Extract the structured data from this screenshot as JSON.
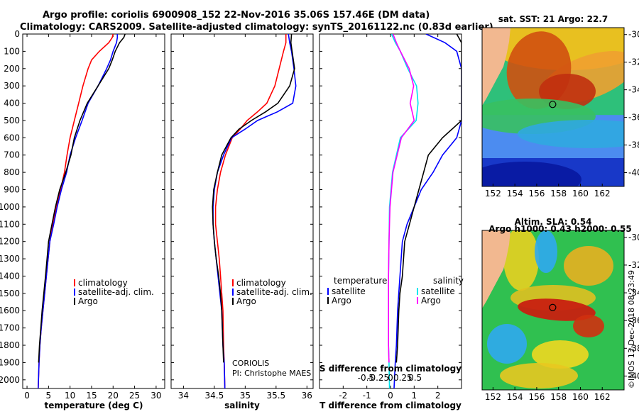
{
  "header": {
    "line1": "Argo profile: coriolis 6900908_152 22-Nov-2016 35.06S 157.46E (DM data)",
    "line2": "Climatology: CARS2009. Satellite-adjusted climatology: synTS_20161122.nc (0.83d earlier)"
  },
  "footer": {
    "institution": "CORIOLIS",
    "pi": "PI: Christophe MAES",
    "credit": "©IMOS 13-Dec-2018 08:23:49"
  },
  "colors": {
    "climatology": "#ff0000",
    "satellite": "#0000ff",
    "argo": "#000000",
    "sat_salinity": "#00e5ee",
    "argo_salinity": "#ff00ff"
  },
  "chart_data": [
    {
      "type": "line",
      "id": "temperature",
      "xlabel": "temperature (deg C)",
      "xlim": [
        -1,
        32
      ],
      "xticks": [
        0,
        5,
        10,
        15,
        20,
        25,
        30
      ],
      "ylim": [
        2050,
        0
      ],
      "yticks": [
        0,
        100,
        200,
        300,
        400,
        500,
        600,
        700,
        800,
        900,
        1000,
        1100,
        1200,
        1300,
        1400,
        1500,
        1600,
        1700,
        1800,
        1900,
        2000
      ],
      "legend": [
        "climatology",
        "satellite-adj. clim.",
        "Argo"
      ],
      "series": [
        {
          "name": "climatology",
          "color": "#ff0000",
          "x": [
            20.0,
            19.8,
            19.0,
            16.8,
            15.0,
            14.2,
            13.0,
            12.0,
            11.0,
            10.0,
            9.3,
            8.7,
            7.8,
            6.8,
            6.0,
            5.3,
            4.5,
            4.1,
            3.7,
            3.3,
            3.0,
            2.8,
            2.6
          ],
          "y": [
            0,
            20,
            50,
            100,
            150,
            200,
            300,
            400,
            500,
            600,
            700,
            800,
            900,
            1000,
            1100,
            1200,
            1400,
            1500,
            1600,
            1700,
            1800,
            1900,
            2050
          ]
        },
        {
          "name": "satellite-adj. clim.",
          "color": "#0000ff",
          "x": [
            21.0,
            21.0,
            20.8,
            20.0,
            19.4,
            18.5,
            16.5,
            14.2,
            12.8,
            11.3,
            10.0,
            9.2,
            8.0,
            7.0,
            6.2,
            5.3,
            4.5,
            4.1,
            3.7,
            3.3,
            3.0,
            2.8,
            2.6
          ],
          "y": [
            0,
            20,
            50,
            100,
            150,
            200,
            300,
            400,
            500,
            600,
            700,
            800,
            900,
            1000,
            1100,
            1200,
            1400,
            1500,
            1600,
            1700,
            1800,
            1900,
            2050
          ]
        },
        {
          "name": "Argo",
          "color": "#000000",
          "x": [
            22.8,
            22.5,
            21.5,
            20.5,
            19.8,
            19.0,
            16.5,
            14.0,
            12.3,
            11.0,
            10.2,
            9.0,
            7.6,
            6.6,
            5.8,
            5.0,
            4.3,
            3.9,
            3.5,
            3.2,
            2.9,
            2.7
          ],
          "y": [
            0,
            20,
            50,
            100,
            150,
            200,
            300,
            400,
            500,
            600,
            700,
            800,
            900,
            1000,
            1100,
            1200,
            1400,
            1500,
            1600,
            1700,
            1800,
            1900
          ]
        }
      ]
    },
    {
      "type": "line",
      "id": "salinity",
      "xlabel": "salinity",
      "xlim": [
        33.8,
        36.1
      ],
      "xticks": [
        34,
        34.5,
        35,
        35.5,
        36
      ],
      "ylim": [
        2050,
        0
      ],
      "legend": [
        "climatology",
        "satellite-adj. clim.",
        "Argo"
      ],
      "series": [
        {
          "name": "climatology",
          "color": "#ff0000",
          "x": [
            35.66,
            35.66,
            35.62,
            35.55,
            35.48,
            35.35,
            35.2,
            35.03,
            34.92,
            34.79,
            34.68,
            34.6,
            34.55,
            34.52,
            34.52,
            34.55,
            34.58,
            34.6,
            34.62,
            34.64,
            34.65,
            34.66,
            34.67
          ],
          "y": [
            0,
            50,
            100,
            200,
            300,
            400,
            450,
            500,
            550,
            600,
            700,
            800,
            900,
            1000,
            1100,
            1200,
            1300,
            1400,
            1500,
            1600,
            1800,
            1900,
            2050
          ]
        },
        {
          "name": "satellite-adj. clim.",
          "color": "#0000ff",
          "x": [
            35.7,
            35.72,
            35.75,
            35.79,
            35.82,
            35.77,
            35.52,
            35.2,
            35.0,
            34.78,
            34.65,
            34.55,
            34.5,
            34.48,
            34.48,
            34.5,
            34.53,
            34.56,
            34.59,
            34.62,
            34.64,
            34.66,
            34.67
          ],
          "y": [
            0,
            50,
            100,
            200,
            300,
            400,
            450,
            500,
            550,
            600,
            700,
            800,
            900,
            1000,
            1100,
            1200,
            1300,
            1400,
            1500,
            1600,
            1800,
            1900,
            2050
          ]
        },
        {
          "name": "Argo",
          "color": "#000000",
          "x": [
            35.75,
            35.74,
            35.76,
            35.8,
            35.72,
            35.53,
            35.33,
            35.1,
            34.9,
            34.77,
            34.62,
            34.55,
            34.49,
            34.47,
            34.48,
            34.5,
            34.53,
            34.57,
            34.6,
            34.62,
            34.64,
            34.65
          ],
          "y": [
            0,
            50,
            100,
            200,
            300,
            400,
            450,
            500,
            550,
            600,
            700,
            800,
            900,
            1000,
            1100,
            1200,
            1300,
            1400,
            1500,
            1600,
            1800,
            1900
          ]
        }
      ]
    },
    {
      "type": "line",
      "id": "difference",
      "xlabel": "T difference from climatology",
      "xlabel2": "S difference from climatology",
      "xlim": [
        -3,
        3.0
      ],
      "xticks": [
        -2,
        -1,
        0,
        1,
        2
      ],
      "xticks2": [
        -0.5,
        -0.25,
        0,
        0.25,
        0.5
      ],
      "ylim": [
        2050,
        0
      ],
      "legend_left_title": "temperature",
      "legend_right_title": "salinity",
      "legend_left": [
        "satellite",
        "Argo"
      ],
      "legend_right": [
        "satellite",
        "Argo"
      ],
      "series": [
        {
          "name": "satellite",
          "color": "#0000ff",
          "x": [
            1.5,
            2.3,
            2.8,
            3.0,
            3.0,
            3.0,
            3.0,
            2.8,
            2.2,
            1.8,
            1.3,
            1.0,
            0.7,
            0.5,
            0.4,
            0.3,
            0.25,
            0.2,
            0.15
          ],
          "y": [
            0,
            50,
            100,
            200,
            300,
            400,
            500,
            600,
            700,
            800,
            900,
            1000,
            1100,
            1200,
            1400,
            1600,
            1800,
            1900,
            2050
          ]
        },
        {
          "name": "Argo",
          "color": "#000000",
          "x": [
            2.8,
            3.0,
            3.0,
            3.0,
            3.0,
            3.0,
            3.0,
            2.2,
            1.9,
            1.6,
            1.4,
            1.2,
            1.0,
            0.8,
            0.6,
            0.5,
            0.4,
            0.35,
            0.3,
            0.25
          ],
          "y": [
            0,
            50,
            100,
            200,
            300,
            400,
            500,
            600,
            650,
            700,
            800,
            900,
            1000,
            1100,
            1200,
            1400,
            1500,
            1600,
            1800,
            1900
          ]
        },
        {
          "name": "sat salinity",
          "color": "#00e5ee",
          "x": [
            0.02,
            0.1,
            0.2,
            0.35,
            0.53,
            0.56,
            0.52,
            0.2,
            0.04,
            -0.02,
            -0.03,
            -0.04,
            -0.04,
            -0.04,
            -0.04,
            -0.03,
            -0.02
          ],
          "y": [
            0,
            50,
            100,
            200,
            300,
            400,
            500,
            600,
            800,
            1000,
            1200,
            1400,
            1500,
            1600,
            1800,
            1900,
            2050
          ]
        },
        {
          "name": "Argo salinity",
          "color": "#ff00ff",
          "x": [
            0.05,
            0.12,
            0.2,
            0.38,
            0.47,
            0.4,
            0.48,
            0.22,
            0.05,
            -0.01,
            -0.03,
            -0.04,
            -0.04,
            -0.04,
            -0.03
          ],
          "y": [
            0,
            50,
            100,
            200,
            300,
            400,
            500,
            600,
            800,
            1000,
            1200,
            1400,
            1600,
            1800,
            1900
          ]
        }
      ]
    },
    {
      "type": "heatmap",
      "id": "sst_map",
      "title": "sat. SST: 21 Argo: 22.7",
      "xticks": [
        152,
        154,
        156,
        158,
        160,
        162
      ],
      "yticks": [
        -30,
        -32,
        -34,
        -36,
        -38,
        -40
      ],
      "xlim": [
        151,
        164
      ],
      "ylim": [
        -41,
        -29.5
      ],
      "float_lon": 157.46,
      "float_lat": -35.06
    },
    {
      "type": "heatmap",
      "id": "sla_map",
      "title": "Altim. SLA: 0.54",
      "subtitle": "Argo h1000: 0.43 h2000: 0.55",
      "xticks": [
        152,
        154,
        156,
        158,
        160,
        162
      ],
      "yticks": [
        -30,
        -32,
        -34,
        -36,
        -38,
        -40
      ],
      "xlim": [
        151,
        164
      ],
      "ylim": [
        -41,
        -29.5
      ],
      "float_lon": 157.46,
      "float_lat": -35.06
    }
  ]
}
